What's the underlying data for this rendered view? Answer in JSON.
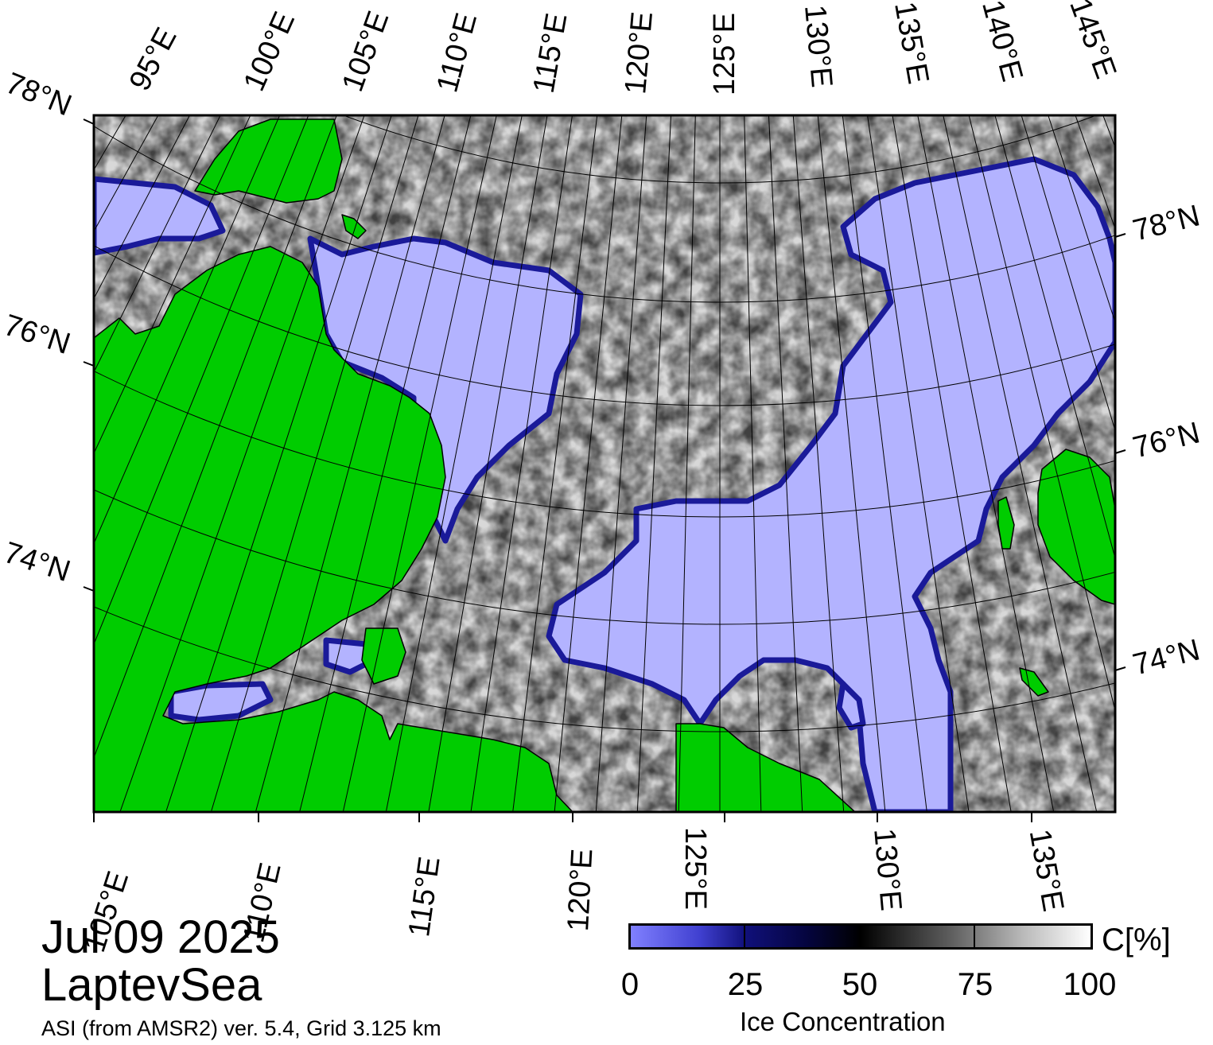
{
  "title": {
    "date": "Jul 09 2025",
    "region": "LaptevSea",
    "source": "ASI (from AMSR2) ver. 5.4,  Grid 3.125 km"
  },
  "map": {
    "top_lon_labels": [
      "95°E",
      "100°E",
      "105°E",
      "110°E",
      "115°E",
      "120°E",
      "125°E",
      "130°E",
      "135°E",
      "140°E",
      "145°E"
    ],
    "bottom_lon_labels": [
      "105°E",
      "110°E",
      "115°E",
      "120°E",
      "125°E",
      "130°E",
      "135°E"
    ],
    "left_lat_labels": [
      "78°N",
      "76°N",
      "74°N"
    ],
    "right_lat_labels": [
      "78°N",
      "76°N",
      "74°N"
    ],
    "colors": {
      "land": "#00cc00",
      "open_water": "#b3b3ff",
      "coast_shadow": "#808080",
      "frame": "#000000"
    }
  },
  "colorbar": {
    "title": "Ice Concentration",
    "unit": "C[%]",
    "ticks": [
      "0",
      "25",
      "50",
      "75",
      "100"
    ],
    "tick_values": [
      0,
      25,
      50,
      75,
      100
    ],
    "range": [
      0,
      100
    ]
  }
}
